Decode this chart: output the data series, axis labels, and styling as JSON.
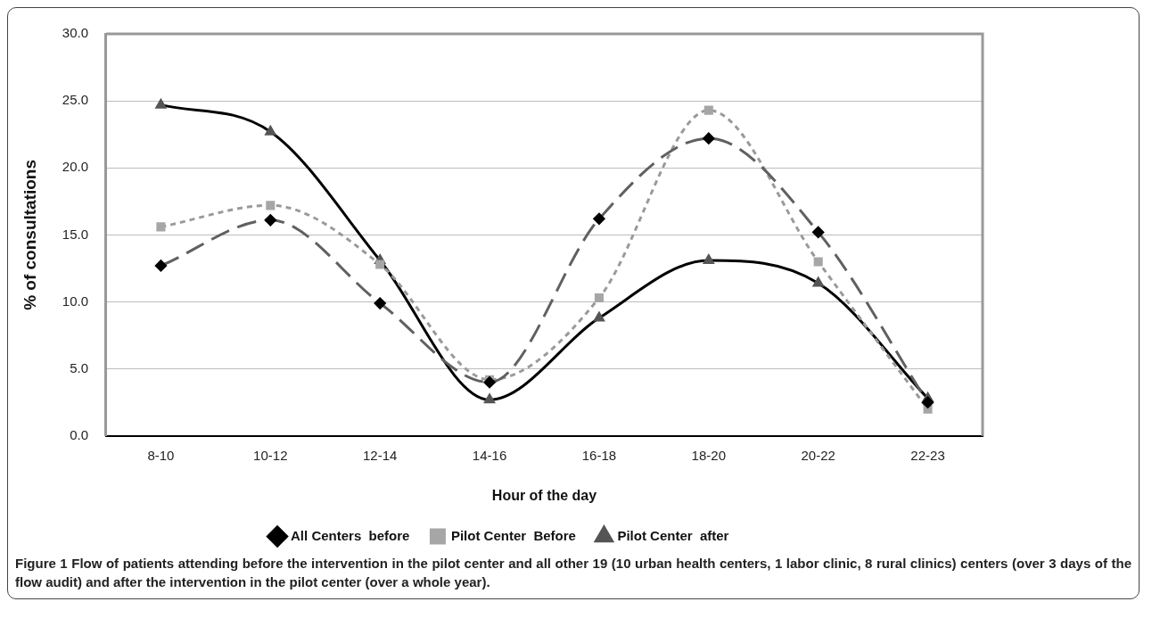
{
  "chart_data": {
    "type": "line",
    "xlabel": "Hour of the day",
    "ylabel": "% of consultations",
    "categories": [
      "8-10",
      "10-12",
      "12-14",
      "14-16",
      "16-18",
      "18-20",
      "20-22",
      "22-23"
    ],
    "series": [
      {
        "name": "All Centers  before",
        "color": "#606060",
        "marker": "diamond",
        "line_style": "dashed",
        "values": [
          12.7,
          16.1,
          9.9,
          4.0,
          16.2,
          22.2,
          15.2,
          2.5
        ]
      },
      {
        "name": "Pilot Center  Before",
        "color": "#9a9a9a",
        "marker": "square",
        "line_style": "dotted",
        "values": [
          15.6,
          17.2,
          12.8,
          4.2,
          10.3,
          24.3,
          13.0,
          2.0
        ]
      },
      {
        "name": "Pilot Center  after",
        "color": "#000000",
        "marker": "triangle",
        "line_style": "solid",
        "values": [
          24.7,
          22.7,
          13.1,
          2.7,
          8.8,
          13.1,
          11.4,
          2.8
        ]
      }
    ],
    "ylim": [
      0,
      30
    ],
    "yticks": [
      {
        "value": 0,
        "label": "0.0"
      },
      {
        "value": 5,
        "label": "5.0"
      },
      {
        "value": 10,
        "label": "10.0"
      },
      {
        "value": 15,
        "label": "15.0"
      },
      {
        "value": 20,
        "label": "20.0"
      },
      {
        "value": 25,
        "label": "25.0"
      },
      {
        "value": 30,
        "label": "30.0"
      }
    ],
    "grid": "y",
    "legend": "bottom",
    "annotations": [
      "Figure 1 Flow of patients attending before the intervention in the pilot center and all other 19 (10 urban health centers, 1 labor clinic, 8 rural clinics) centers (over 3 days of the flow audit) and after the intervention in the pilot center (over a whole year)."
    ]
  }
}
